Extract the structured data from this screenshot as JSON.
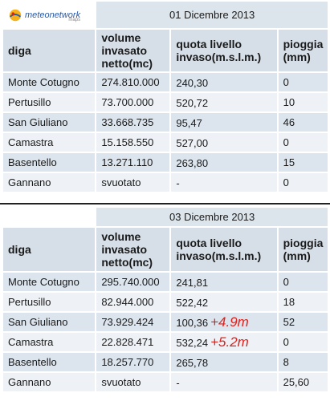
{
  "logo": {
    "text": "meteonetwork",
    "sub": "maps"
  },
  "headers": {
    "diga": "diga",
    "volume": "volume invasato netto(mc)",
    "quota": "quota livello invaso(m.s.l.m.)",
    "pioggia": "pioggia (mm)"
  },
  "tables": [
    {
      "date": "01 Dicembre 2013",
      "rows": [
        {
          "diga": "Monte Cotugno",
          "volume": "274.810.000",
          "quota": "240,30",
          "delta": "",
          "pioggia": "0"
        },
        {
          "diga": "Pertusillo",
          "volume": "73.700.000",
          "quota": "520,72",
          "delta": "",
          "pioggia": "10"
        },
        {
          "diga": "San Giuliano",
          "volume": "33.668.735",
          "quota": "95,47",
          "delta": "",
          "pioggia": "46"
        },
        {
          "diga": "Camastra",
          "volume": "15.158.550",
          "quota": "527,00",
          "delta": "",
          "pioggia": "0"
        },
        {
          "diga": "Basentello",
          "volume": "13.271.110",
          "quota": "263,80",
          "delta": "",
          "pioggia": "15"
        },
        {
          "diga": "Gannano",
          "volume": "svuotato",
          "quota": "-",
          "delta": "",
          "pioggia": "0"
        }
      ]
    },
    {
      "date": "03 Dicembre 2013",
      "rows": [
        {
          "diga": "Monte Cotugno",
          "volume": "295.740.000",
          "quota": "241,81",
          "delta": "",
          "pioggia": "0"
        },
        {
          "diga": "Pertusillo",
          "volume": "82.944.000",
          "quota": "522,42",
          "delta": "",
          "pioggia": "18"
        },
        {
          "diga": "San Giuliano",
          "volume": "73.929.424",
          "quota": "100,36",
          "delta": "+4.9m",
          "pioggia": "52"
        },
        {
          "diga": "Camastra",
          "volume": "22.828.471",
          "quota": "532,24",
          "delta": "+5.2m",
          "pioggia": "0"
        },
        {
          "diga": "Basentello",
          "volume": "18.257.770",
          "quota": "265,78",
          "delta": "",
          "pioggia": "8"
        },
        {
          "diga": "Gannano",
          "volume": "svuotato",
          "quota": "-",
          "delta": "",
          "pioggia": "25,60"
        }
      ]
    }
  ]
}
